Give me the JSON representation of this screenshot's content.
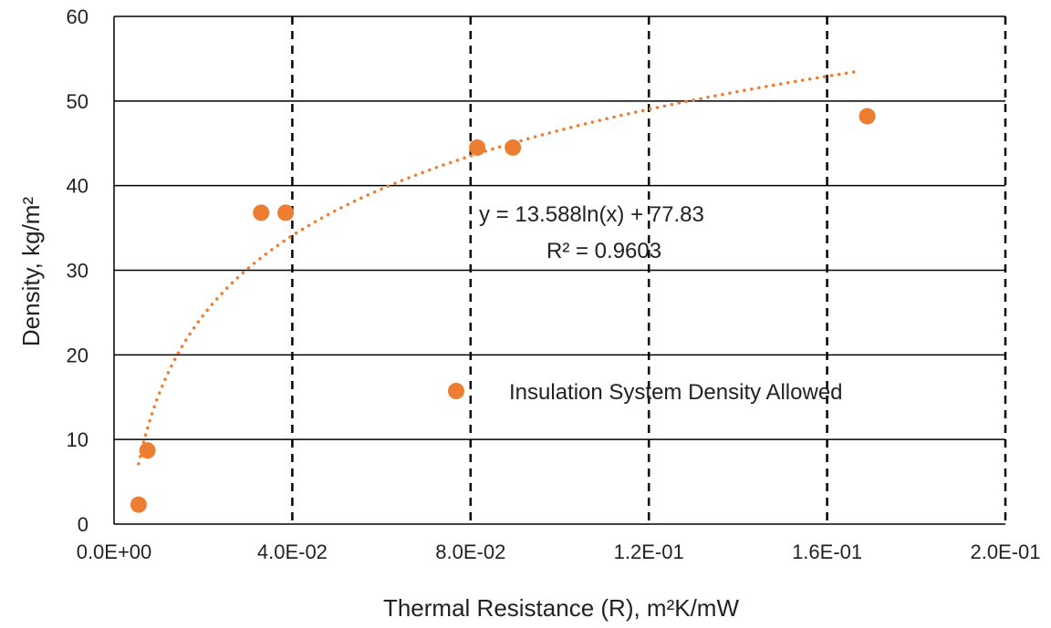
{
  "chart_data": {
    "type": "scatter",
    "xlabel": "Thermal Resistance (R), m²K/mW",
    "ylabel": "Density, kg/m²",
    "xlim": [
      0,
      0.2
    ],
    "ylim": [
      0,
      60
    ],
    "x_ticks": [
      0,
      0.04,
      0.08,
      0.12,
      0.16,
      0.2
    ],
    "x_tick_labels": [
      "0.0E+00",
      "4.0E-02",
      "8.0E-02",
      "1.2E-01",
      "1.6E-01",
      "2.0E-01"
    ],
    "y_ticks": [
      0,
      10,
      20,
      30,
      40,
      50,
      60
    ],
    "y_tick_labels": [
      "0",
      "10",
      "20",
      "30",
      "40",
      "50",
      "60"
    ],
    "grid": {
      "horizontal": "solid",
      "vertical": "dashed"
    },
    "series": [
      {
        "color": "#ED7D31",
        "points": [
          {
            "x": 0.0055,
            "y": 2.3
          },
          {
            "x": 0.0075,
            "y": 8.7
          },
          {
            "x": 0.033,
            "y": 36.8
          },
          {
            "x": 0.0385,
            "y": 36.8
          },
          {
            "x": 0.0815,
            "y": 44.5
          },
          {
            "x": 0.0895,
            "y": 44.5
          },
          {
            "x": 0.169,
            "y": 48.2
          }
        ]
      }
    ],
    "trendline": {
      "type": "logarithmic",
      "coef_a": 13.588,
      "coef_b": 77.83,
      "x_range": [
        0.0055,
        0.1665
      ],
      "equation_label": "y = 13.588ln(x) + 77.83",
      "r2_label": "R² = 0.9603",
      "color": "#ED7D31"
    },
    "legend": {
      "label": "Insulation System Density Allowed",
      "color": "#ED7D31"
    }
  }
}
